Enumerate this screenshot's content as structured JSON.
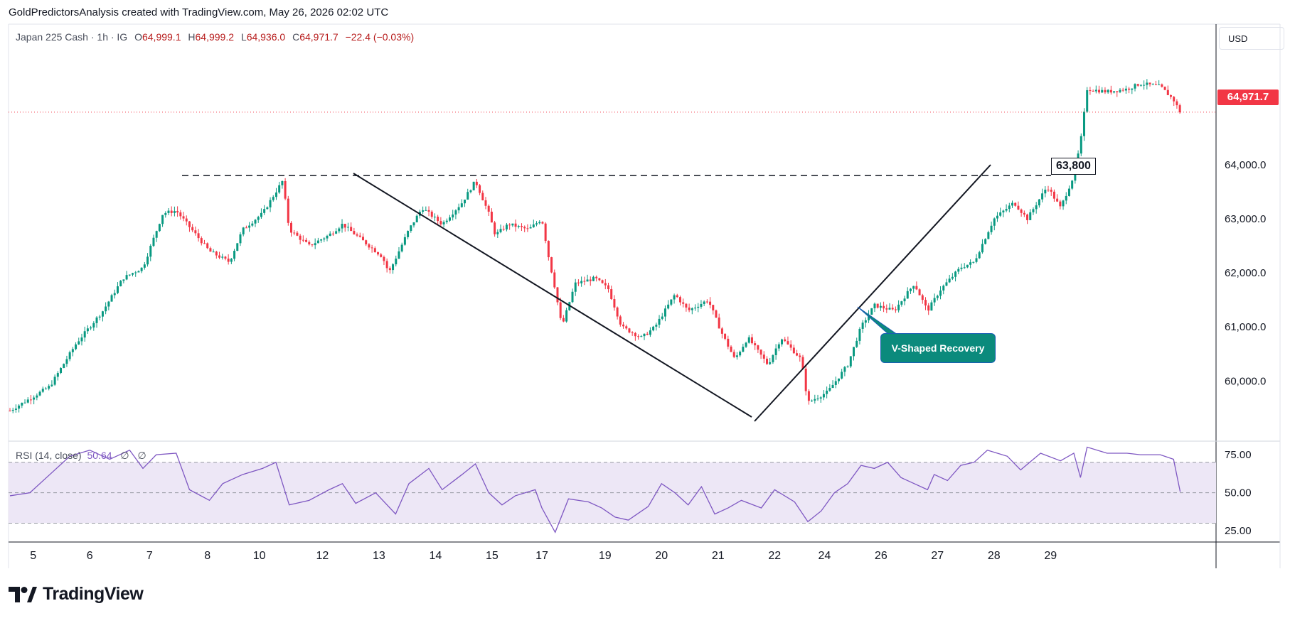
{
  "header": {
    "attribution": "GoldPredictorsAnalysis created with TradingView.com, May 26, 2026 02:02 UTC"
  },
  "legend": {
    "symbol": "Japan 225 Cash · 1h · IG",
    "o_label": "O",
    "o": "64,999.1",
    "h_label": "H",
    "h": "64,999.2",
    "l_label": "L",
    "l": "64,936.0",
    "c_label": "C",
    "c": "64,971.7",
    "change": "−22.4 (−0.03%)"
  },
  "currency": "USD",
  "last_price_label": "64,971.7",
  "level_label": "63,800",
  "callout": "V-Shaped Recovery",
  "rsi_legend": {
    "name": "RSI (14, close)",
    "value": "50.64",
    "na1": "∅",
    "na2": "∅"
  },
  "brand": {
    "name": "TradingView"
  },
  "colors": {
    "up": "#089981",
    "down": "#f23645",
    "rsi": "#7e57c2",
    "rsi_band": "#ede7f6",
    "callout": "#0b8a7c"
  },
  "chart_data": [
    {
      "type": "candlestick",
      "title": "Japan 225 Cash · 1h · IG",
      "x_tick_labels": [
        "5",
        "6",
        "7",
        "8",
        "10",
        "12",
        "13",
        "14",
        "15",
        "17",
        "19",
        "20",
        "21",
        "22",
        "24",
        "26",
        "27",
        "28",
        "29"
      ],
      "y_tick_labels": [
        "64,000.0",
        "63,000.0",
        "62,000.0",
        "61,000.0",
        "60,000.0"
      ],
      "y_ticks": [
        64000,
        63000,
        62000,
        61000,
        60000
      ],
      "ylim": [
        58900,
        66600
      ],
      "last_price": 64971.7,
      "close_path": [
        {
          "x": 0,
          "y": 59450
        },
        {
          "x": 0.6,
          "y": 59900
        },
        {
          "x": 1.0,
          "y": 60700
        },
        {
          "x": 1.4,
          "y": 61300
        },
        {
          "x": 1.7,
          "y": 61900
        },
        {
          "x": 2.0,
          "y": 62100
        },
        {
          "x": 2.3,
          "y": 63100
        },
        {
          "x": 2.5,
          "y": 63150
        },
        {
          "x": 2.8,
          "y": 62700
        },
        {
          "x": 3.0,
          "y": 62400
        },
        {
          "x": 3.3,
          "y": 62200
        },
        {
          "x": 3.5,
          "y": 62800
        },
        {
          "x": 3.8,
          "y": 63100
        },
        {
          "x": 4.0,
          "y": 63500
        },
        {
          "x": 4.1,
          "y": 63700
        },
        {
          "x": 4.2,
          "y": 62800
        },
        {
          "x": 4.5,
          "y": 62500
        },
        {
          "x": 4.8,
          "y": 62700
        },
        {
          "x": 5.0,
          "y": 62900
        },
        {
          "x": 5.1,
          "y": 62800
        },
        {
          "x": 5.3,
          "y": 62600
        },
        {
          "x": 5.6,
          "y": 62300
        },
        {
          "x": 5.7,
          "y": 62000
        },
        {
          "x": 6.0,
          "y": 62800
        },
        {
          "x": 6.2,
          "y": 63200
        },
        {
          "x": 6.5,
          "y": 62900
        },
        {
          "x": 6.8,
          "y": 63300
        },
        {
          "x": 7.0,
          "y": 63700
        },
        {
          "x": 7.2,
          "y": 63100
        },
        {
          "x": 7.3,
          "y": 62700
        },
        {
          "x": 7.5,
          "y": 62900
        },
        {
          "x": 7.8,
          "y": 62800
        },
        {
          "x": 8.0,
          "y": 63000
        },
        {
          "x": 8.1,
          "y": 62300
        },
        {
          "x": 8.2,
          "y": 61700
        },
        {
          "x": 8.3,
          "y": 61000
        },
        {
          "x": 8.5,
          "y": 61800
        },
        {
          "x": 8.8,
          "y": 61900
        },
        {
          "x": 9.0,
          "y": 61700
        },
        {
          "x": 9.2,
          "y": 61000
        },
        {
          "x": 9.5,
          "y": 60800
        },
        {
          "x": 9.7,
          "y": 61000
        },
        {
          "x": 10.0,
          "y": 61600
        },
        {
          "x": 10.2,
          "y": 61300
        },
        {
          "x": 10.5,
          "y": 61500
        },
        {
          "x": 10.7,
          "y": 60900
        },
        {
          "x": 10.9,
          "y": 60400
        },
        {
          "x": 11.1,
          "y": 60800
        },
        {
          "x": 11.4,
          "y": 60300
        },
        {
          "x": 11.6,
          "y": 60800
        },
        {
          "x": 11.9,
          "y": 60400
        },
        {
          "x": 12.0,
          "y": 59600
        },
        {
          "x": 12.3,
          "y": 59800
        },
        {
          "x": 12.6,
          "y": 60300
        },
        {
          "x": 12.8,
          "y": 61000
        },
        {
          "x": 13.0,
          "y": 61400
        },
        {
          "x": 13.3,
          "y": 61300
        },
        {
          "x": 13.6,
          "y": 61800
        },
        {
          "x": 13.8,
          "y": 61300
        },
        {
          "x": 14.0,
          "y": 61700
        },
        {
          "x": 14.3,
          "y": 62100
        },
        {
          "x": 14.5,
          "y": 62200
        },
        {
          "x": 14.8,
          "y": 63000
        },
        {
          "x": 15.1,
          "y": 63300
        },
        {
          "x": 15.3,
          "y": 63000
        },
        {
          "x": 15.6,
          "y": 63600
        },
        {
          "x": 15.8,
          "y": 63200
        },
        {
          "x": 16.0,
          "y": 63800
        },
        {
          "x": 16.1,
          "y": 64400
        },
        {
          "x": 16.2,
          "y": 65400
        },
        {
          "x": 16.5,
          "y": 65350
        },
        {
          "x": 16.8,
          "y": 65400
        },
        {
          "x": 17.0,
          "y": 65500
        },
        {
          "x": 17.3,
          "y": 65450
        },
        {
          "x": 17.5,
          "y": 65200
        },
        {
          "x": 17.6,
          "y": 64971.7
        }
      ]
    },
    {
      "type": "line",
      "title": "RSI (14, close)",
      "y_tick_labels": [
        "75.00",
        "50.00",
        "25.00"
      ],
      "y_ticks": [
        75,
        50,
        25
      ],
      "band": [
        30,
        70
      ],
      "ylim": [
        19,
        83
      ],
      "last_value": 50.64,
      "points": [
        {
          "x": 0,
          "y": 48
        },
        {
          "x": 0.3,
          "y": 50
        },
        {
          "x": 0.6,
          "y": 62
        },
        {
          "x": 0.9,
          "y": 74
        },
        {
          "x": 1.2,
          "y": 78
        },
        {
          "x": 1.5,
          "y": 72
        },
        {
          "x": 1.8,
          "y": 78
        },
        {
          "x": 2.0,
          "y": 66
        },
        {
          "x": 2.2,
          "y": 75
        },
        {
          "x": 2.5,
          "y": 76
        },
        {
          "x": 2.7,
          "y": 52
        },
        {
          "x": 3.0,
          "y": 45
        },
        {
          "x": 3.2,
          "y": 56
        },
        {
          "x": 3.5,
          "y": 62
        },
        {
          "x": 3.8,
          "y": 66
        },
        {
          "x": 4.0,
          "y": 70
        },
        {
          "x": 4.2,
          "y": 42
        },
        {
          "x": 4.5,
          "y": 45
        },
        {
          "x": 4.8,
          "y": 52
        },
        {
          "x": 5.0,
          "y": 56
        },
        {
          "x": 5.2,
          "y": 43
        },
        {
          "x": 5.5,
          "y": 50
        },
        {
          "x": 5.8,
          "y": 36
        },
        {
          "x": 6.0,
          "y": 56
        },
        {
          "x": 6.3,
          "y": 66
        },
        {
          "x": 6.5,
          "y": 52
        },
        {
          "x": 6.8,
          "y": 62
        },
        {
          "x": 7.0,
          "y": 69
        },
        {
          "x": 7.2,
          "y": 50
        },
        {
          "x": 7.4,
          "y": 42
        },
        {
          "x": 7.6,
          "y": 48
        },
        {
          "x": 7.9,
          "y": 52
        },
        {
          "x": 8.0,
          "y": 40
        },
        {
          "x": 8.2,
          "y": 24
        },
        {
          "x": 8.4,
          "y": 46
        },
        {
          "x": 8.7,
          "y": 44
        },
        {
          "x": 8.9,
          "y": 40
        },
        {
          "x": 9.1,
          "y": 34
        },
        {
          "x": 9.3,
          "y": 32
        },
        {
          "x": 9.6,
          "y": 41
        },
        {
          "x": 9.8,
          "y": 56
        },
        {
          "x": 10.0,
          "y": 50
        },
        {
          "x": 10.2,
          "y": 42
        },
        {
          "x": 10.4,
          "y": 54
        },
        {
          "x": 10.6,
          "y": 36
        },
        {
          "x": 10.8,
          "y": 40
        },
        {
          "x": 11.0,
          "y": 45
        },
        {
          "x": 11.3,
          "y": 40
        },
        {
          "x": 11.5,
          "y": 52
        },
        {
          "x": 11.8,
          "y": 44
        },
        {
          "x": 12.0,
          "y": 31
        },
        {
          "x": 12.2,
          "y": 38
        },
        {
          "x": 12.4,
          "y": 50
        },
        {
          "x": 12.6,
          "y": 56
        },
        {
          "x": 12.8,
          "y": 68
        },
        {
          "x": 13.0,
          "y": 66
        },
        {
          "x": 13.2,
          "y": 70
        },
        {
          "x": 13.4,
          "y": 60
        },
        {
          "x": 13.6,
          "y": 56
        },
        {
          "x": 13.8,
          "y": 52
        },
        {
          "x": 13.9,
          "y": 62
        },
        {
          "x": 14.1,
          "y": 58
        },
        {
          "x": 14.3,
          "y": 68
        },
        {
          "x": 14.5,
          "y": 70
        },
        {
          "x": 14.7,
          "y": 78
        },
        {
          "x": 15.0,
          "y": 74
        },
        {
          "x": 15.2,
          "y": 65
        },
        {
          "x": 15.5,
          "y": 76
        },
        {
          "x": 15.8,
          "y": 71
        },
        {
          "x": 16.0,
          "y": 76
        },
        {
          "x": 16.1,
          "y": 60
        },
        {
          "x": 16.2,
          "y": 80
        },
        {
          "x": 16.5,
          "y": 76
        },
        {
          "x": 16.8,
          "y": 76
        },
        {
          "x": 17.0,
          "y": 75
        },
        {
          "x": 17.3,
          "y": 75
        },
        {
          "x": 17.5,
          "y": 72
        },
        {
          "x": 17.6,
          "y": 50.64
        }
      ]
    }
  ]
}
